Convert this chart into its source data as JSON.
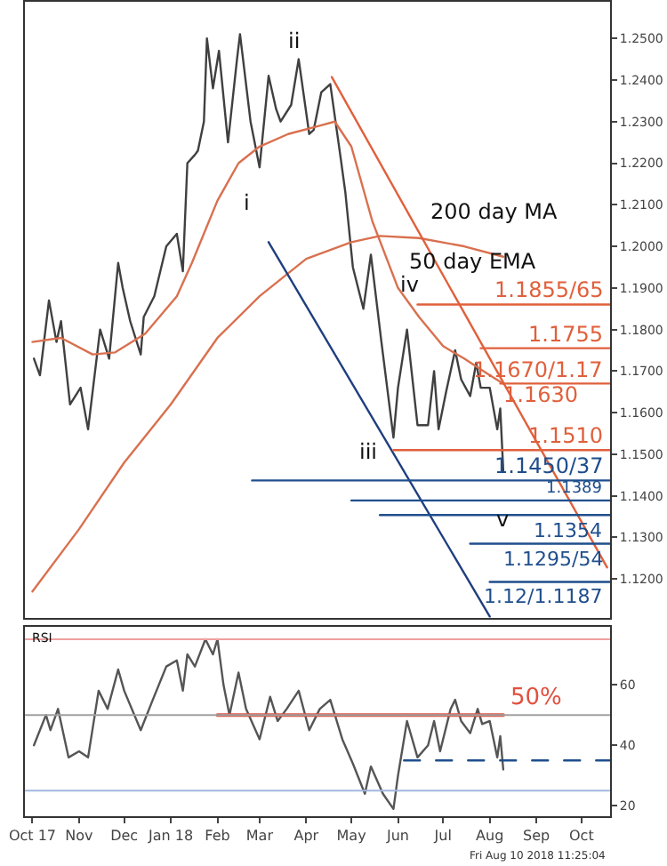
{
  "chart_data": [
    {
      "type": "line",
      "xlim": [
        "2017-09-26",
        "2018-10-20"
      ],
      "ylim": [
        1.1106,
        1.2588
      ],
      "tick_labels": "y",
      "yticks": [
        {
          "value": 1.12,
          "label": "1.1200"
        },
        {
          "value": 1.13,
          "label": "1.1300"
        },
        {
          "value": 1.14,
          "label": "1.1400"
        },
        {
          "value": 1.15,
          "label": "1.1500"
        },
        {
          "value": 1.16,
          "label": "1.1600"
        },
        {
          "value": 1.17,
          "label": "1.1700"
        },
        {
          "value": 1.18,
          "label": "1.1800"
        },
        {
          "value": 1.19,
          "label": "1.1900"
        },
        {
          "value": 1.2,
          "label": "1.2000"
        },
        {
          "value": 1.21,
          "label": "1.2100"
        },
        {
          "value": 1.22,
          "label": "1.2200"
        },
        {
          "value": 1.23,
          "label": "1.2300"
        },
        {
          "value": 1.24,
          "label": "1.2400"
        },
        {
          "value": 1.25,
          "label": "1.2500"
        }
      ],
      "series": [
        {
          "color": "#404040",
          "x": [
            "2017-10-02",
            "2017-10-06",
            "2017-10-12",
            "2017-10-17",
            "2017-10-20",
            "2017-10-26",
            "2017-11-02",
            "2017-11-07",
            "2017-11-15",
            "2017-11-21",
            "2017-11-27",
            "2017-11-30",
            "2017-12-05",
            "2017-12-12",
            "2017-12-14",
            "2017-12-21",
            "2017-12-29",
            "2018-01-05",
            "2018-01-09",
            "2018-01-12",
            "2018-01-17",
            "2018-01-19",
            "2018-01-23",
            "2018-01-25",
            "2018-01-29",
            "2018-02-02",
            "2018-02-08",
            "2018-02-14",
            "2018-02-16",
            "2018-02-23",
            "2018-03-01",
            "2018-03-07",
            "2018-03-12",
            "2018-03-15",
            "2018-03-22",
            "2018-03-27",
            "2018-04-03",
            "2018-04-06",
            "2018-04-11",
            "2018-04-17",
            "2018-04-24",
            "2018-04-27",
            "2018-05-02",
            "2018-05-09",
            "2018-05-14",
            "2018-05-21",
            "2018-05-29",
            "2018-06-01",
            "2018-06-07",
            "2018-06-14",
            "2018-06-21",
            "2018-06-25",
            "2018-06-28",
            "2018-07-03",
            "2018-07-09",
            "2018-07-13",
            "2018-07-19",
            "2018-07-23",
            "2018-07-26",
            "2018-08-01",
            "2018-08-06",
            "2018-08-08",
            "2018-08-10"
          ],
          "values": [
            1.173,
            1.169,
            1.187,
            1.177,
            1.182,
            1.162,
            1.166,
            1.156,
            1.18,
            1.173,
            1.196,
            1.19,
            1.182,
            1.174,
            1.183,
            1.188,
            1.2,
            1.203,
            1.194,
            1.22,
            1.222,
            1.223,
            1.23,
            1.25,
            1.238,
            1.247,
            1.225,
            1.245,
            1.251,
            1.23,
            1.219,
            1.241,
            1.233,
            1.23,
            1.234,
            1.245,
            1.227,
            1.228,
            1.237,
            1.239,
            1.221,
            1.213,
            1.195,
            1.185,
            1.198,
            1.177,
            1.154,
            1.166,
            1.18,
            1.157,
            1.157,
            1.17,
            1.156,
            1.165,
            1.175,
            1.168,
            1.164,
            1.172,
            1.166,
            1.166,
            1.156,
            1.161,
            1.146
          ]
        },
        {
          "name": "50 day EMA",
          "color": "#d9704f",
          "x": [
            "2017-10-01",
            "2017-10-20",
            "2017-11-10",
            "2017-11-25",
            "2017-12-15",
            "2018-01-05",
            "2018-01-15",
            "2018-02-01",
            "2018-02-15",
            "2018-03-01",
            "2018-03-20",
            "2018-04-10",
            "2018-04-20",
            "2018-05-01",
            "2018-05-15",
            "2018-06-01",
            "2018-06-15",
            "2018-07-01",
            "2018-07-15",
            "2018-08-01",
            "2018-08-10"
          ],
          "values": [
            1.177,
            1.178,
            1.174,
            1.1745,
            1.179,
            1.188,
            1.196,
            1.211,
            1.22,
            1.224,
            1.227,
            1.229,
            1.23,
            1.224,
            1.206,
            1.19,
            1.183,
            1.176,
            1.173,
            1.169,
            1.167
          ]
        },
        {
          "name": "200 day MA",
          "color": "#d9704f",
          "x": [
            "2017-10-01",
            "2017-11-01",
            "2017-12-01",
            "2018-01-01",
            "2018-02-01",
            "2018-03-01",
            "2018-04-01",
            "2018-05-01",
            "2018-05-20",
            "2018-06-15",
            "2018-07-15",
            "2018-08-10"
          ],
          "values": [
            1.117,
            1.132,
            1.148,
            1.162,
            1.178,
            1.188,
            1.197,
            1.201,
            1.2025,
            1.202,
            1.2,
            1.1975
          ]
        },
        {
          "color": "#e0603c",
          "x": [
            "2018-04-18",
            "2018-10-18"
          ],
          "values": [
            1.2407,
            1.1228
          ]
        },
        {
          "color": "#1f3f7f",
          "x": [
            "2018-03-07",
            "2018-08-01"
          ],
          "values": [
            1.201,
            1.111
          ]
        },
        {
          "name": "1.1855/65",
          "color": "#e0603c",
          "x": [
            "2018-06-14",
            "2018-10-20"
          ],
          "values": [
            1.186,
            1.186
          ]
        },
        {
          "name": "1.1755",
          "color": "#e0603c",
          "x": [
            "2018-07-26",
            "2018-10-20"
          ],
          "values": [
            1.1755,
            1.1755
          ]
        },
        {
          "name": "1.1670/1.17",
          "color": "#e0603c",
          "x": [
            "2018-08-08",
            "2018-10-20"
          ],
          "values": [
            1.167,
            1.167
          ]
        },
        {
          "name": "1.1510",
          "color": "#e0603c",
          "x": [
            "2018-05-29",
            "2018-10-20"
          ],
          "values": [
            1.151,
            1.151
          ]
        },
        {
          "name": "1.1450/37",
          "color": "#1f4e8c",
          "x": [
            "2018-02-24",
            "2018-10-20"
          ],
          "values": [
            1.1437,
            1.1437
          ]
        },
        {
          "name": "1.1389",
          "color": "#1f4e8c",
          "x": [
            "2018-05-01",
            "2018-10-20"
          ],
          "values": [
            1.1389,
            1.1389
          ]
        },
        {
          "name": "1.1354",
          "color": "#1f4e8c",
          "x": [
            "2018-05-20",
            "2018-10-20"
          ],
          "values": [
            1.1354,
            1.1354
          ]
        },
        {
          "name": "1.1295/54",
          "color": "#1f4e8c",
          "x": [
            "2018-07-19",
            "2018-10-20"
          ],
          "values": [
            1.1285,
            1.1285
          ]
        },
        {
          "name": "1.12/1.1187",
          "color": "#1f4e8c",
          "x": [
            "2018-08-01",
            "2018-10-20"
          ],
          "values": [
            1.1193,
            1.1193
          ]
        }
      ],
      "annotations": [
        "i",
        "ii",
        "iii",
        "iv",
        "v",
        "1.1630"
      ]
    },
    {
      "type": "line",
      "title": "RSI",
      "xlim": [
        "2017-09-26",
        "2018-10-20"
      ],
      "ylim": [
        16.6,
        79
      ],
      "yticks": [
        20,
        40,
        60
      ],
      "xticks": [
        {
          "value": "2017-10-01",
          "label": "Oct 17"
        },
        {
          "value": "2017-11-01",
          "label": "Nov"
        },
        {
          "value": "2017-12-01",
          "label": "Dec"
        },
        {
          "value": "2018-01-01",
          "label": "Jan 18"
        },
        {
          "value": "2018-02-01",
          "label": "Feb"
        },
        {
          "value": "2018-03-01",
          "label": "Mar"
        },
        {
          "value": "2018-04-01",
          "label": "Apr"
        },
        {
          "value": "2018-05-01",
          "label": "May"
        },
        {
          "value": "2018-06-01",
          "label": "Jun"
        },
        {
          "value": "2018-07-01",
          "label": "Jul"
        },
        {
          "value": "2018-08-01",
          "label": "Aug"
        },
        {
          "value": "2018-09-01",
          "label": "Sep"
        },
        {
          "value": "2018-10-01",
          "label": "Oct"
        }
      ],
      "ref_lines": [
        {
          "axis": "y",
          "value": 75,
          "color": "#f0a0a0"
        },
        {
          "axis": "y",
          "value": 50,
          "color": "#a0a0a0"
        },
        {
          "axis": "y",
          "value": 25,
          "color": "#a0b8e0"
        }
      ],
      "series": [
        {
          "color": "#555555",
          "x": [
            "2017-10-02",
            "2017-10-10",
            "2017-10-13",
            "2017-10-18",
            "2017-10-25",
            "2017-11-01",
            "2017-11-07",
            "2017-11-14",
            "2017-11-20",
            "2017-11-27",
            "2017-12-01",
            "2017-12-12",
            "2017-12-20",
            "2017-12-29",
            "2018-01-05",
            "2018-01-09",
            "2018-01-12",
            "2018-01-17",
            "2018-01-24",
            "2018-01-29",
            "2018-02-01",
            "2018-02-05",
            "2018-02-09",
            "2018-02-15",
            "2018-02-20",
            "2018-03-01",
            "2018-03-08",
            "2018-03-13",
            "2018-03-19",
            "2018-03-27",
            "2018-04-03",
            "2018-04-10",
            "2018-04-17",
            "2018-04-25",
            "2018-05-02",
            "2018-05-10",
            "2018-05-14",
            "2018-05-22",
            "2018-05-29",
            "2018-06-01",
            "2018-06-07",
            "2018-06-14",
            "2018-06-21",
            "2018-06-25",
            "2018-06-29",
            "2018-07-06",
            "2018-07-09",
            "2018-07-13",
            "2018-07-19",
            "2018-07-24",
            "2018-07-27",
            "2018-08-01",
            "2018-08-06",
            "2018-08-08",
            "2018-08-10"
          ],
          "values": [
            40,
            50,
            45,
            52,
            36,
            38,
            36,
            58,
            52,
            65,
            58,
            45,
            55,
            66,
            68,
            58,
            70,
            66,
            75,
            70,
            75,
            60,
            50,
            64,
            52,
            42,
            56,
            48,
            52,
            58,
            45,
            52,
            55,
            42,
            34,
            24,
            33,
            24,
            19,
            30,
            48,
            36,
            40,
            48,
            38,
            52,
            55,
            48,
            44,
            52,
            47,
            48,
            36,
            43,
            32
          ]
        },
        {
          "name": "50%",
          "color": "#e05040",
          "x": [
            "2018-02-01",
            "2018-08-10"
          ],
          "values": [
            50,
            50
          ]
        },
        {
          "color": "#1f4e8c",
          "line_style": "dashed",
          "x": [
            "2018-06-05",
            "2018-10-20"
          ],
          "values": [
            35,
            35
          ]
        }
      ],
      "annotations": [
        "Fri Aug 10 2018 11:25:04"
      ]
    }
  ]
}
